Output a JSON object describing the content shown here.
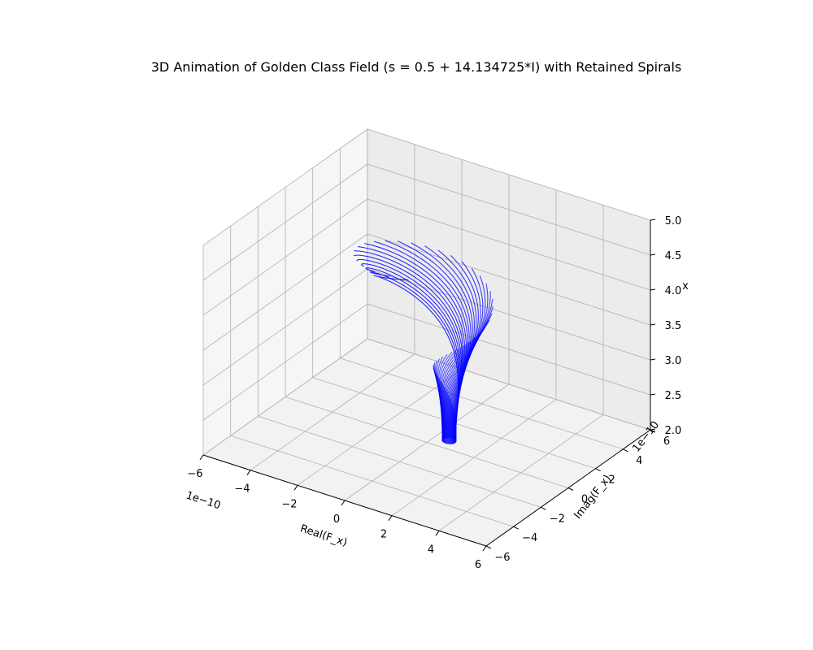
{
  "chart_data": {
    "type": "line",
    "projection": "3d",
    "title": "3D Animation of Golden Class Field (s = 0.5 + 14.134725*I) with Retained Spirals",
    "xlabel": "Real(F_x)",
    "ylabel": "Imag(F_x)",
    "zlabel": "x",
    "x_offset_text": "1e−10",
    "y_offset_text": "1e−10",
    "xlim": [
      -6,
      6
    ],
    "ylim": [
      -6,
      6
    ],
    "zlim": [
      2.0,
      5.0
    ],
    "x_ticks": [
      "−6",
      "−4",
      "−2",
      "0",
      "2",
      "4",
      "6"
    ],
    "y_ticks": [
      "−6",
      "−4",
      "−2",
      "0",
      "2",
      "4",
      "6"
    ],
    "z_ticks": [
      "2.0",
      "2.5",
      "3.0",
      "3.5",
      "4.0",
      "4.5",
      "5.0"
    ],
    "x_tick_values": [
      -6,
      -4,
      -2,
      0,
      2,
      4,
      6
    ],
    "y_tick_values": [
      -6,
      -4,
      -2,
      0,
      2,
      4,
      6
    ],
    "z_tick_values": [
      2.0,
      2.5,
      3.0,
      3.5,
      4.0,
      4.5,
      5.0
    ],
    "grid": true,
    "series_color": "#0000ff",
    "spiral_count": 60,
    "x_range": [
      2.0,
      5.0
    ],
    "max_radius": 4.2,
    "center": [
      0.6,
      0.6
    ]
  }
}
